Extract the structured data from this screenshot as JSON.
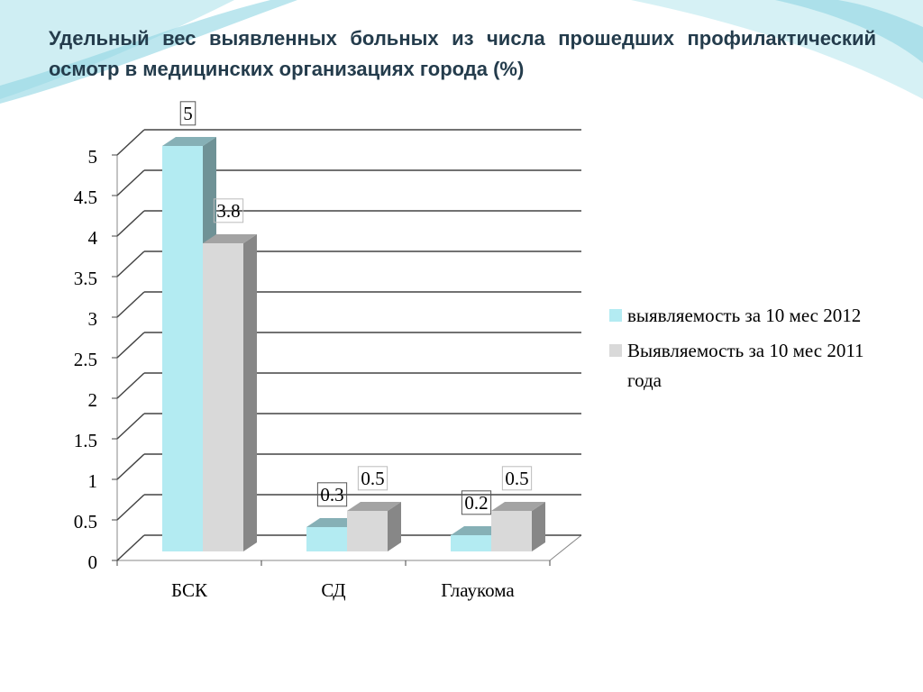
{
  "chart_data": {
    "type": "bar3d",
    "title": "Удельный вес выявленных больных из числа прошедших профилактический осмотр в медицинских организациях города (%)",
    "categories": [
      "БСК",
      "СД",
      "Глаукома"
    ],
    "series": [
      {
        "name": "выявляемость за 10 мес 2012",
        "color": "#b3ebf2",
        "values": [
          5,
          0.3,
          0.2
        ]
      },
      {
        "name": "Выявляемость за 10 мес 2011 года",
        "color": "#d9d9d9",
        "values": [
          3.8,
          0.5,
          0.5
        ]
      }
    ],
    "ylim": [
      0,
      5
    ],
    "yticks": [
      0,
      0.5,
      1,
      1.5,
      2,
      2.5,
      3,
      3.5,
      4,
      4.5,
      5
    ],
    "grid": true,
    "legend": "right"
  }
}
